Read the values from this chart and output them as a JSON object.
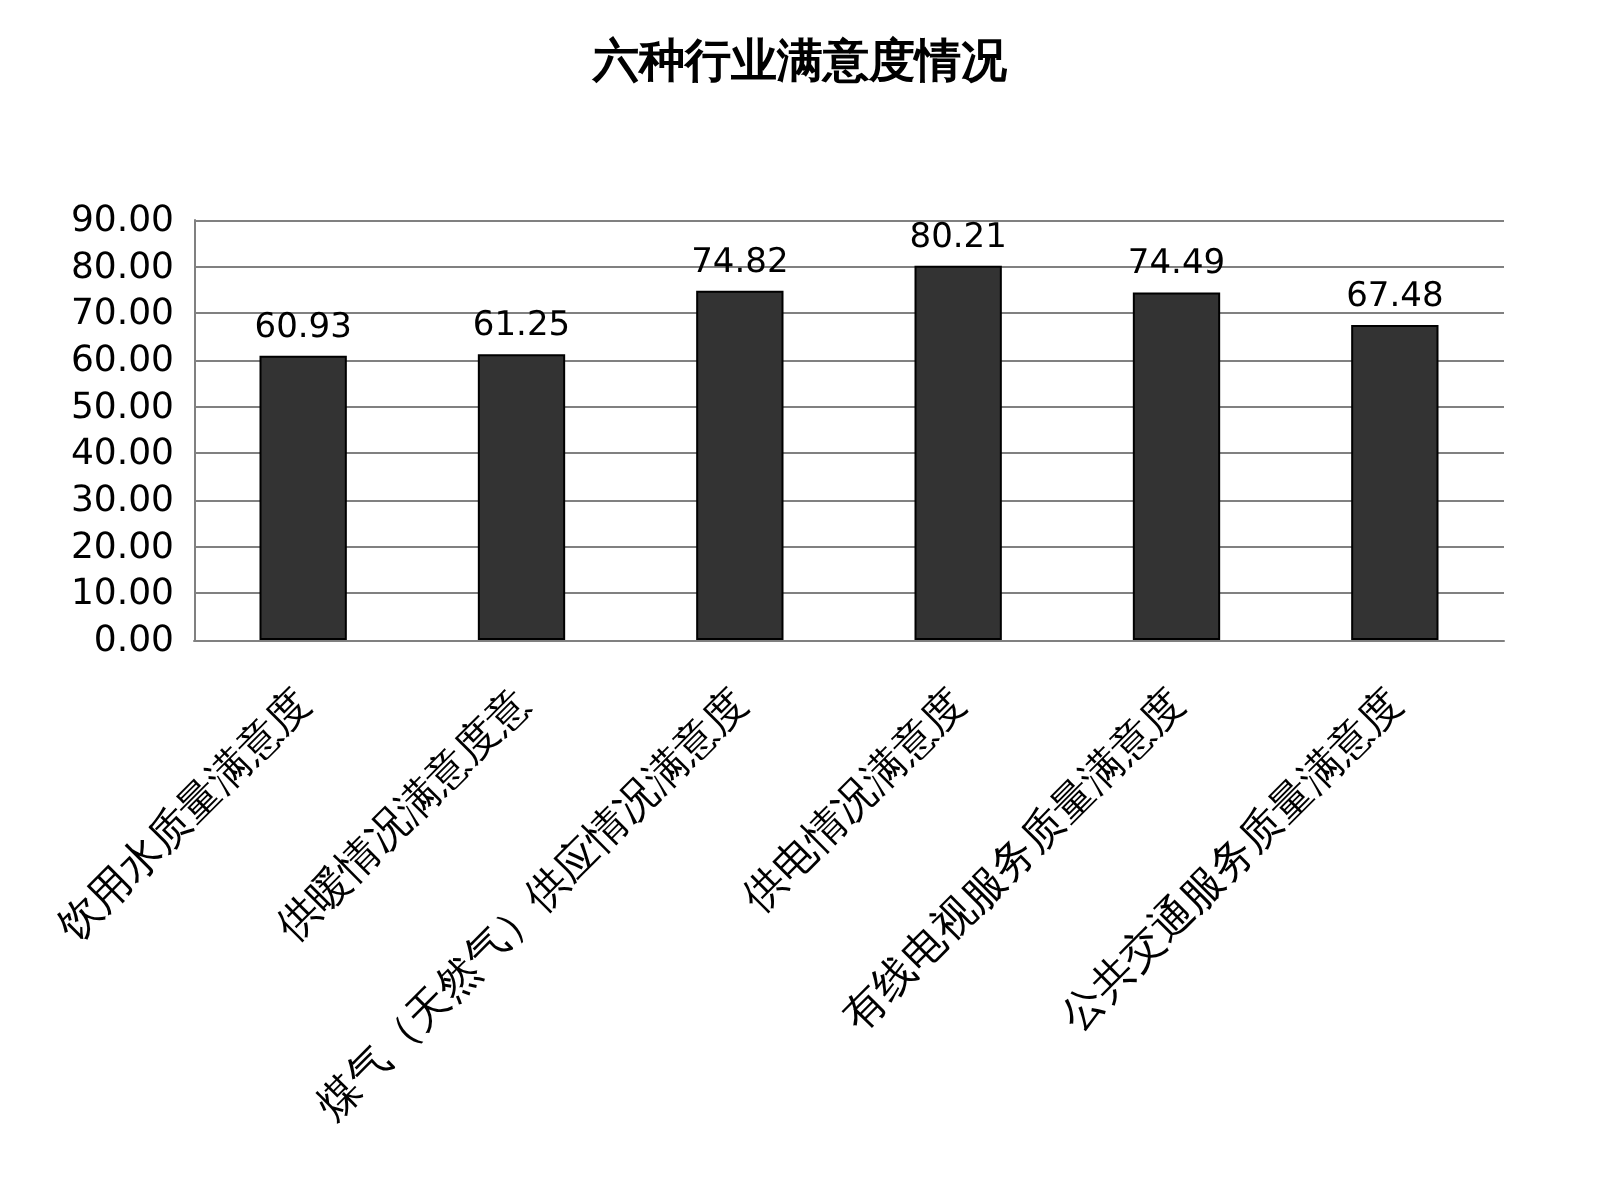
{
  "chart_data": {
    "type": "bar",
    "title": "六种行业满意度情况",
    "categories": [
      "饮用水质量满意度",
      "供暖情况满意度意",
      "煤气（天然气）供应情况满意度",
      "供电情况满意度",
      "有线电视服务质量满意度",
      "公共交通服务质量满意度"
    ],
    "values": [
      60.93,
      61.25,
      74.82,
      80.21,
      74.49,
      67.48
    ],
    "color": "#333333",
    "ylim": [
      0,
      90
    ],
    "yticks": [
      {
        "value": 0,
        "label": "0.00"
      },
      {
        "value": 10,
        "label": "10.00"
      },
      {
        "value": 20,
        "label": "20.00"
      },
      {
        "value": 30,
        "label": "30.00"
      },
      {
        "value": 40,
        "label": "40.00"
      },
      {
        "value": 50,
        "label": "50.00"
      },
      {
        "value": 60,
        "label": "60.00"
      },
      {
        "value": 70,
        "label": "70.00"
      },
      {
        "value": 80,
        "label": "80.00"
      },
      {
        "value": 90,
        "label": "90.00"
      }
    ],
    "grid": "y",
    "data_labels": true
  }
}
